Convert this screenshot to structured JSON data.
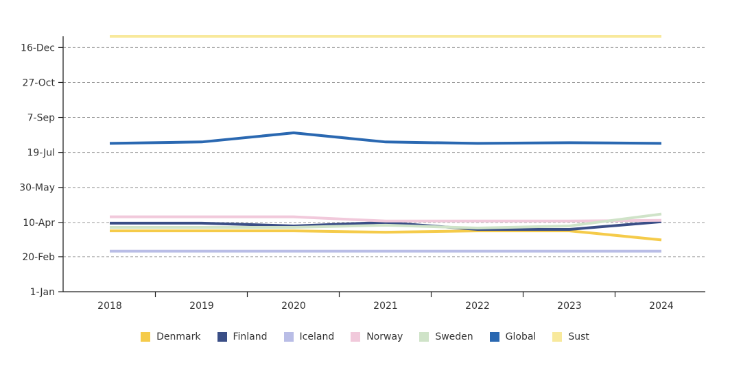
{
  "chart_data": {
    "type": "line",
    "x": [
      "2018",
      "2019",
      "2020",
      "2021",
      "2022",
      "2023",
      "2024"
    ],
    "y_ticks": [
      "1-Jan",
      "20-Feb",
      "10-Apr",
      "30-May",
      "19-Jul",
      "7-Sep",
      "27-Oct",
      "16-Dec"
    ],
    "y_tick_days": [
      0,
      50,
      99,
      149,
      199,
      249,
      299,
      349
    ],
    "ylim": [
      0,
      365
    ],
    "grid": "horizontal dashed",
    "legend_position": "bottom",
    "series": [
      {
        "name": "Denmark",
        "color": "#f5cb4a",
        "values": [
          87,
          87,
          87,
          85,
          87,
          87,
          74
        ]
      },
      {
        "name": "Finland",
        "color": "#3a4e86",
        "values": [
          98,
          98,
          94,
          99,
          89,
          89,
          100
        ]
      },
      {
        "name": "Iceland",
        "color": "#b9bde6",
        "values": [
          58,
          58,
          58,
          58,
          58,
          58,
          58
        ]
      },
      {
        "name": "Norway",
        "color": "#f1c9db",
        "values": [
          107,
          107,
          107,
          101,
          101,
          101,
          102
        ]
      },
      {
        "name": "Sweden",
        "color": "#cfe3c8",
        "values": [
          92,
          92,
          92,
          95,
          91,
          94,
          111
        ]
      },
      {
        "name": "Global",
        "color": "#2a68b1",
        "values": [
          212,
          214,
          227,
          214,
          212,
          213,
          212
        ]
      },
      {
        "name": "Sust",
        "color": "#f8e99c",
        "values": [
          365,
          365,
          365,
          365,
          365,
          365,
          365
        ]
      }
    ]
  }
}
